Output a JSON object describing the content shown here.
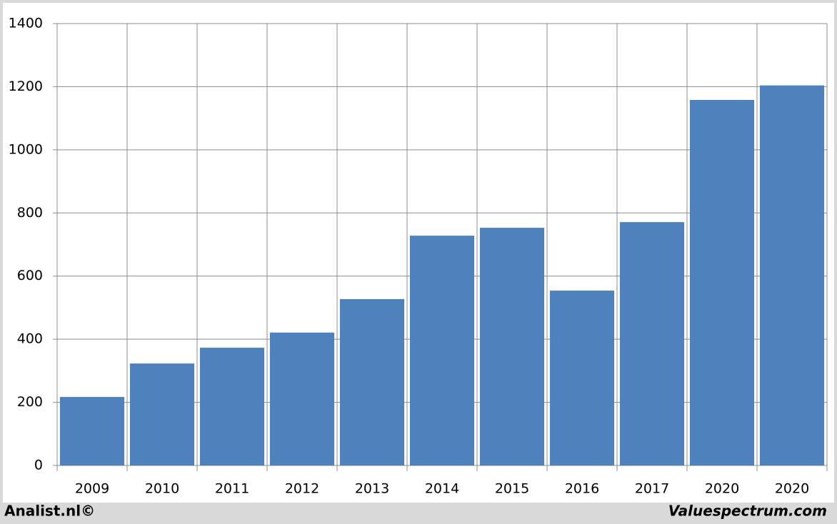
{
  "chart_data": {
    "type": "bar",
    "categories": [
      "2009",
      "2010",
      "2011",
      "2012",
      "2013",
      "2014",
      "2015",
      "2016",
      "2017",
      "2020",
      "2020"
    ],
    "values": [
      217,
      323,
      373,
      421,
      527,
      728,
      753,
      554,
      771,
      1158,
      1204
    ],
    "color": "#4f81bd",
    "ylim": [
      0,
      1400
    ],
    "yticks": [
      0,
      200,
      400,
      600,
      800,
      1000,
      1200,
      1400
    ],
    "grid": true,
    "footer_left": "Analist.nl©",
    "footer_right": "Valuespectrum.com"
  }
}
